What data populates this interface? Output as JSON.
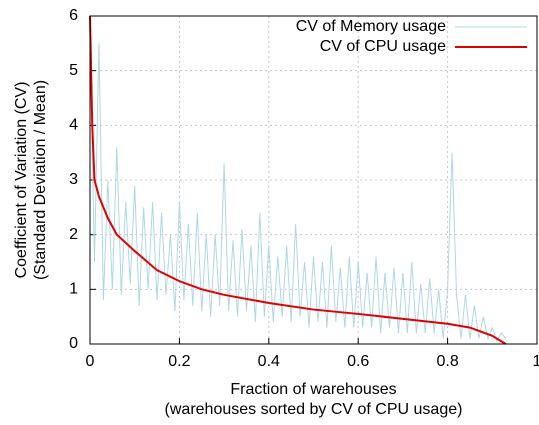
{
  "chart_data": {
    "type": "line",
    "xlabel": [
      "Fraction of warehouses",
      "(warehouses sorted by CV of CPU usage)"
    ],
    "ylabel": [
      "Coefficient of Variation (CV)",
      "(Standard Deviation / Mean)"
    ],
    "xlim": [
      0,
      1
    ],
    "xticks": [
      0,
      0.2,
      0.4,
      0.6,
      0.8,
      1
    ],
    "ylim": [
      0,
      6
    ],
    "yticks": [
      0,
      1,
      2,
      3,
      4,
      5,
      6
    ],
    "grid": true,
    "legend": "top-right",
    "series": [
      {
        "name": "CV of Memory usage",
        "color": "#add8e6",
        "x": [
          0,
          0.01,
          0.02,
          0.03,
          0.04,
          0.05,
          0.06,
          0.07,
          0.08,
          0.09,
          0.1,
          0.11,
          0.12,
          0.13,
          0.14,
          0.15,
          0.16,
          0.17,
          0.18,
          0.19,
          0.2,
          0.21,
          0.22,
          0.23,
          0.24,
          0.25,
          0.26,
          0.27,
          0.28,
          0.29,
          0.3,
          0.31,
          0.32,
          0.33,
          0.34,
          0.35,
          0.36,
          0.37,
          0.38,
          0.39,
          0.4,
          0.41,
          0.42,
          0.43,
          0.44,
          0.45,
          0.46,
          0.47,
          0.48,
          0.49,
          0.5,
          0.51,
          0.52,
          0.53,
          0.54,
          0.55,
          0.56,
          0.57,
          0.58,
          0.59,
          0.6,
          0.61,
          0.62,
          0.63,
          0.64,
          0.65,
          0.66,
          0.67,
          0.68,
          0.69,
          0.7,
          0.71,
          0.72,
          0.73,
          0.74,
          0.75,
          0.76,
          0.77,
          0.78,
          0.79,
          0.8,
          0.81,
          0.82,
          0.83,
          0.84,
          0.85,
          0.86,
          0.87,
          0.88,
          0.89,
          0.9,
          0.91,
          0.92,
          0.93
        ],
        "values": [
          5.8,
          1.5,
          5.5,
          0.8,
          3.0,
          1.0,
          3.6,
          0.9,
          2.6,
          1.1,
          2.9,
          0.7,
          2.5,
          1.0,
          2.6,
          0.8,
          2.4,
          0.9,
          2.0,
          0.6,
          2.6,
          0.8,
          2.2,
          0.7,
          2.4,
          0.6,
          2.0,
          0.5,
          2.0,
          0.7,
          3.3,
          0.6,
          1.9,
          0.5,
          2.1,
          0.6,
          1.8,
          0.4,
          2.4,
          0.5,
          1.8,
          0.4,
          1.6,
          0.5,
          1.8,
          0.4,
          2.2,
          0.5,
          1.5,
          0.3,
          1.6,
          0.4,
          1.5,
          0.3,
          1.8,
          0.4,
          1.4,
          0.3,
          1.6,
          0.3,
          1.5,
          0.3,
          1.3,
          0.3,
          1.6,
          0.2,
          1.3,
          0.3,
          1.4,
          0.2,
          1.3,
          0.2,
          1.5,
          0.2,
          1.1,
          0.2,
          1.2,
          0.2,
          1.0,
          0.1,
          1.0,
          3.5,
          0.9,
          0.1,
          0.9,
          0.1,
          0.7,
          0.1,
          0.5,
          0.1,
          0.3,
          0.05,
          0.2,
          0.1
        ]
      },
      {
        "name": "CV of CPU usage",
        "color": "#e00000",
        "x": [
          0,
          0.005,
          0.01,
          0.02,
          0.04,
          0.06,
          0.1,
          0.15,
          0.2,
          0.25,
          0.3,
          0.4,
          0.5,
          0.6,
          0.7,
          0.8,
          0.85,
          0.9,
          0.93
        ],
        "values": [
          6,
          4,
          3,
          2.7,
          2.3,
          2.0,
          1.7,
          1.35,
          1.15,
          1.0,
          0.9,
          0.75,
          0.63,
          0.55,
          0.46,
          0.37,
          0.3,
          0.15,
          0
        ]
      }
    ]
  }
}
